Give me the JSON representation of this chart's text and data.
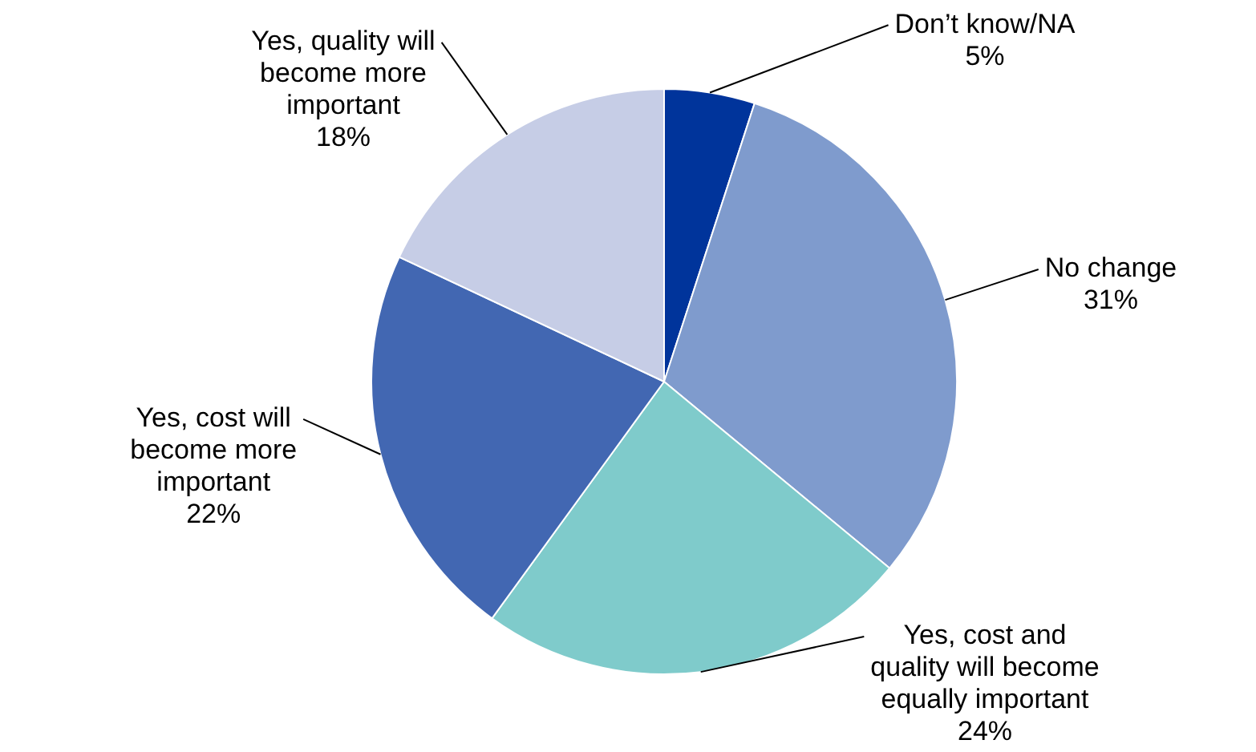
{
  "chart_data": {
    "type": "pie",
    "categories": [
      "Don’t know/NA",
      "No change",
      "Yes, cost and quality will become equally important",
      "Yes, cost will become more important",
      "Yes, quality will become more important"
    ],
    "values": [
      5,
      31,
      24,
      22,
      18
    ],
    "colors": [
      "#00349b",
      "#7f9bcd",
      "#7fcbcb",
      "#4267b2",
      "#c6cde6"
    ],
    "value_labels": [
      "5%",
      "31%",
      "24%",
      "22%",
      "18%"
    ],
    "legend": false
  }
}
